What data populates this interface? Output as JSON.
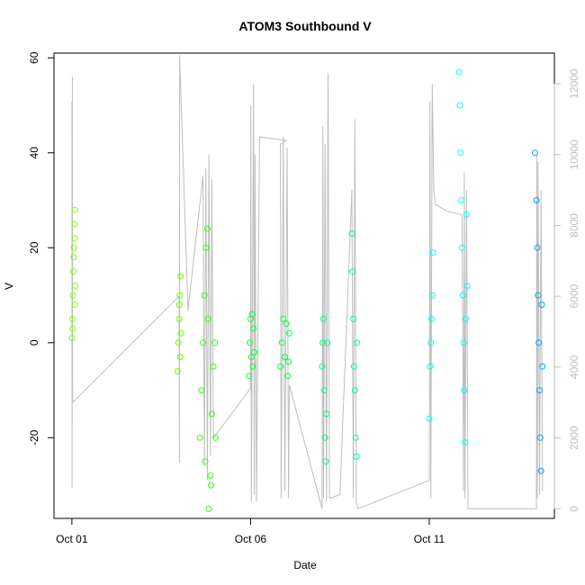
{
  "chart_data": {
    "type": "scatter",
    "title": "ATOM3 Southbound V",
    "xlabel": "Date",
    "ylabel": "V",
    "x_axis": {
      "type": "date",
      "range": [
        "2015-09-30T12:00",
        "2015-10-14T12:00"
      ],
      "ticks": [
        {
          "value": "2015-10-01T00:00",
          "label": "Oct 01"
        },
        {
          "value": "2015-10-06T00:00",
          "label": "Oct 06"
        },
        {
          "value": "2015-10-11T00:00",
          "label": "Oct 11"
        }
      ]
    },
    "y_axis": {
      "range": [
        -37,
        61
      ],
      "ticks": [
        -20,
        0,
        20,
        40,
        60
      ]
    },
    "y2_axis": {
      "color": "#bebebe",
      "range": [
        -272,
        12866
      ],
      "ticks": [
        0,
        2000,
        4000,
        6000,
        8000,
        10000,
        12000
      ]
    },
    "grid": false,
    "legend": "none",
    "line_series": {
      "axis": "y2",
      "color": "#bebebe",
      "points": [
        [
          "2015-10-01T00:00",
          11500
        ],
        [
          "2015-10-01T00:10",
          600
        ],
        [
          "2015-10-01T00:20",
          12200
        ],
        [
          "2015-10-01T00:30",
          3000
        ],
        [
          "2015-10-04T00:00",
          6000
        ],
        [
          "2015-10-04T00:15",
          1300
        ],
        [
          "2015-10-04T00:20",
          12800
        ],
        [
          "2015-10-04T06:00",
          5600
        ],
        [
          "2015-10-04T16:00",
          9400
        ],
        [
          "2015-10-04T17:00",
          1200
        ],
        [
          "2015-10-04T18:00",
          9600
        ],
        [
          "2015-10-04T19:00",
          800
        ],
        [
          "2015-10-04T20:00",
          10000
        ],
        [
          "2015-10-04T21:00",
          1500
        ],
        [
          "2015-10-04T22:00",
          9300
        ],
        [
          "2015-10-04T23:00",
          2000
        ],
        [
          "2015-10-06T00:00",
          3400
        ],
        [
          "2015-10-06T00:10",
          11400
        ],
        [
          "2015-10-06T00:30",
          200
        ],
        [
          "2015-10-06T02:00",
          12000
        ],
        [
          "2015-10-06T02:30",
          400
        ],
        [
          "2015-10-06T03:00",
          10000
        ],
        [
          "2015-10-06T04:00",
          200
        ],
        [
          "2015-10-06T06:00",
          10500
        ],
        [
          "2015-10-07T00:00",
          10400
        ],
        [
          "2015-10-06T20:00",
          10300
        ],
        [
          "2015-10-06T20:30",
          300
        ],
        [
          "2015-10-06T22:00",
          10500
        ],
        [
          "2015-10-06T23:00",
          500
        ],
        [
          "2015-10-07T00:30",
          10200
        ],
        [
          "2015-10-07T01:30",
          300
        ],
        [
          "2015-10-07T02:00",
          3500
        ],
        [
          "2015-10-08T00:00",
          0
        ],
        [
          "2015-10-08T00:30",
          10800
        ],
        [
          "2015-10-08T01:00",
          300
        ],
        [
          "2015-10-08T02:00",
          10300
        ],
        [
          "2015-10-08T03:00",
          200
        ],
        [
          "2015-10-08T04:00",
          12300
        ],
        [
          "2015-10-08T05:00",
          300
        ],
        [
          "2015-10-08T12:00",
          400
        ],
        [
          "2015-10-08T20:00",
          9000
        ],
        [
          "2015-10-08T21:00",
          300
        ],
        [
          "2015-10-08T22:00",
          11000
        ],
        [
          "2015-10-08T23:00",
          200
        ],
        [
          "2015-10-09T00:00",
          0
        ],
        [
          "2015-10-11T00:00",
          800
        ],
        [
          "2015-10-11T00:30",
          11500
        ],
        [
          "2015-10-11T01:00",
          300
        ],
        [
          "2015-10-11T02:00",
          12000
        ],
        [
          "2015-10-11T03:00",
          9000
        ],
        [
          "2015-10-11T04:00",
          8600
        ],
        [
          "2015-10-11T12:00",
          8400
        ],
        [
          "2015-10-11T22:00",
          8300
        ],
        [
          "2015-10-11T23:00",
          500
        ],
        [
          "2015-10-11T23:30",
          9500
        ],
        [
          "2015-10-12T00:00",
          300
        ],
        [
          "2015-10-12T01:00",
          9000
        ],
        [
          "2015-10-12T02:00",
          0
        ],
        [
          "2015-10-14T00:00",
          0
        ],
        [
          "2015-10-14T00:10",
          10000
        ],
        [
          "2015-10-14T00:30",
          300
        ],
        [
          "2015-10-14T01:00",
          9800
        ],
        [
          "2015-10-14T02:00",
          400
        ],
        [
          "2015-10-14T03:00",
          9000
        ],
        [
          "2015-10-14T04:00",
          500
        ]
      ]
    },
    "scatter_series": [
      {
        "color": "#7fff00",
        "x_range": [
          "2015-10-01T00:00",
          "2015-10-01T02:30"
        ],
        "points": [
          [
            "2015-10-01T00:00",
            1
          ],
          [
            "2015-10-01T00:20",
            5
          ],
          [
            "2015-10-01T00:40",
            10
          ],
          [
            "2015-10-01T01:00",
            15
          ],
          [
            "2015-10-01T01:20",
            20
          ],
          [
            "2015-10-01T01:40",
            25
          ],
          [
            "2015-10-01T02:00",
            28
          ],
          [
            "2015-10-01T02:20",
            12
          ],
          [
            "2015-10-01T00:30",
            3
          ],
          [
            "2015-10-01T01:10",
            18
          ],
          [
            "2015-10-01T01:50",
            22
          ],
          [
            "2015-10-01T02:10",
            8
          ]
        ]
      },
      {
        "color": "#66ff00",
        "x_range": [
          "2015-10-03T23:00",
          "2015-10-04T01:30"
        ],
        "points": [
          [
            "2015-10-03T23:00",
            -6
          ],
          [
            "2015-10-03T23:30",
            0
          ],
          [
            "2015-10-04T00:00",
            5
          ],
          [
            "2015-10-04T00:30",
            10
          ],
          [
            "2015-10-04T01:00",
            14
          ],
          [
            "2015-10-04T01:20",
            2
          ],
          [
            "2015-10-04T00:45",
            -3
          ],
          [
            "2015-10-04T00:15",
            8
          ]
        ]
      },
      {
        "color": "#33ff00",
        "x_range": [
          "2015-10-04T14:00",
          "2015-10-05T01:00"
        ],
        "points": [
          [
            "2015-10-04T14:00",
            -20
          ],
          [
            "2015-10-04T15:00",
            -10
          ],
          [
            "2015-10-04T16:00",
            0
          ],
          [
            "2015-10-04T17:00",
            10
          ],
          [
            "2015-10-04T18:00",
            20
          ],
          [
            "2015-10-04T19:00",
            24
          ],
          [
            "2015-10-04T20:00",
            -35
          ],
          [
            "2015-10-04T21:00",
            -28
          ],
          [
            "2015-10-04T22:00",
            -15
          ],
          [
            "2015-10-04T23:00",
            -5
          ],
          [
            "2015-10-05T00:00",
            0
          ],
          [
            "2015-10-05T00:30",
            -20
          ],
          [
            "2015-10-04T17:30",
            -25
          ],
          [
            "2015-10-04T19:30",
            5
          ],
          [
            "2015-10-04T21:30",
            -30
          ]
        ]
      },
      {
        "color": "#11ff33",
        "x_range": [
          "2015-10-05T23:00",
          "2015-10-06T02:30"
        ],
        "points": [
          [
            "2015-10-05T23:00",
            -7
          ],
          [
            "2015-10-05T23:30",
            0
          ],
          [
            "2015-10-06T00:00",
            5
          ],
          [
            "2015-10-06T00:30",
            -3
          ],
          [
            "2015-10-06T01:00",
            6
          ],
          [
            "2015-10-06T01:30",
            -5
          ],
          [
            "2015-10-06T02:00",
            3
          ],
          [
            "2015-10-06T02:30",
            -2
          ]
        ]
      },
      {
        "color": "#00ff44",
        "x_range": [
          "2015-10-06T20:00",
          "2015-10-07T02:00"
        ],
        "points": [
          [
            "2015-10-06T20:00",
            -5
          ],
          [
            "2015-10-06T21:00",
            0
          ],
          [
            "2015-10-06T22:00",
            5
          ],
          [
            "2015-10-06T23:00",
            -3
          ],
          [
            "2015-10-07T00:00",
            4
          ],
          [
            "2015-10-07T01:00",
            -7
          ],
          [
            "2015-10-07T02:00",
            2
          ],
          [
            "2015-10-07T01:30",
            -4
          ]
        ]
      },
      {
        "color": "#00ff80",
        "x_range": [
          "2015-10-08T00:00",
          "2015-10-08T04:00"
        ],
        "points": [
          [
            "2015-10-08T00:00",
            -5
          ],
          [
            "2015-10-08T00:30",
            0
          ],
          [
            "2015-10-08T01:00",
            5
          ],
          [
            "2015-10-08T01:30",
            -10
          ],
          [
            "2015-10-08T02:00",
            -20
          ],
          [
            "2015-10-08T02:30",
            -25
          ],
          [
            "2015-10-08T03:00",
            -15
          ],
          [
            "2015-10-08T03:30",
            0
          ]
        ]
      },
      {
        "color": "#00ff99",
        "x_range": [
          "2015-10-08T20:00",
          "2015-10-09T00:00"
        ],
        "points": [
          [
            "2015-10-08T20:00",
            23
          ],
          [
            "2015-10-08T20:30",
            15
          ],
          [
            "2015-10-08T21:00",
            5
          ],
          [
            "2015-10-08T21:30",
            -5
          ],
          [
            "2015-10-08T22:00",
            -10
          ],
          [
            "2015-10-08T22:30",
            -20
          ],
          [
            "2015-10-08T23:00",
            -24
          ],
          [
            "2015-10-08T23:30",
            0
          ]
        ]
      },
      {
        "color": "#00ffee",
        "x_range": [
          "2015-10-11T00:00",
          "2015-10-11T02:30"
        ],
        "points": [
          [
            "2015-10-11T00:00",
            -16
          ],
          [
            "2015-10-11T00:30",
            -5
          ],
          [
            "2015-10-11T01:00",
            0
          ],
          [
            "2015-10-11T01:30",
            5
          ],
          [
            "2015-10-11T02:00",
            10
          ],
          [
            "2015-10-11T02:30",
            19
          ]
        ]
      },
      {
        "color": "#00ffff",
        "x_range": [
          "2015-10-11T20:00",
          "2015-10-12T02:00"
        ],
        "points": [
          [
            "2015-10-11T20:00",
            57
          ],
          [
            "2015-10-11T20:30",
            50
          ],
          [
            "2015-10-11T21:00",
            40
          ],
          [
            "2015-10-11T21:30",
            30
          ],
          [
            "2015-10-11T22:00",
            20
          ],
          [
            "2015-10-11T22:30",
            10
          ],
          [
            "2015-10-11T23:00",
            0
          ],
          [
            "2015-10-11T23:30",
            -10
          ],
          [
            "2015-10-12T00:00",
            -21
          ],
          [
            "2015-10-12T00:30",
            5
          ],
          [
            "2015-10-12T01:00",
            27
          ],
          [
            "2015-10-12T01:30",
            12
          ]
        ]
      },
      {
        "color": "#00a5ff",
        "x_range": [
          "2015-10-13T23:00",
          "2015-10-14T04:00"
        ],
        "points": [
          [
            "2015-10-13T23:00",
            40
          ],
          [
            "2015-10-14T00:00",
            30
          ],
          [
            "2015-10-14T00:30",
            20
          ],
          [
            "2015-10-14T01:00",
            10
          ],
          [
            "2015-10-14T01:30",
            0
          ],
          [
            "2015-10-14T02:00",
            -10
          ],
          [
            "2015-10-14T02:30",
            -20
          ],
          [
            "2015-10-14T03:00",
            -27
          ],
          [
            "2015-10-14T03:30",
            8
          ],
          [
            "2015-10-14T04:00",
            -5
          ]
        ]
      }
    ]
  }
}
